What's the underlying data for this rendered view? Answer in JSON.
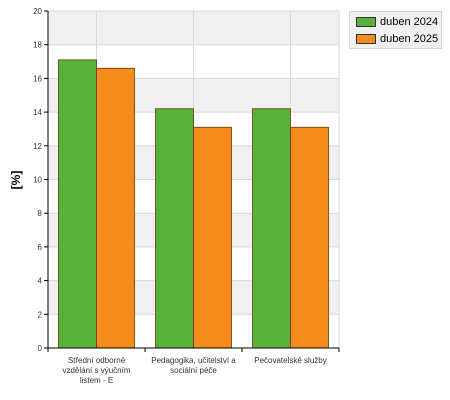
{
  "chart_data": {
    "type": "bar",
    "categories": [
      [
        "Střední odborné",
        "vzdělání s výučním",
        "listem - E"
      ],
      [
        "Pedagogika, učitelství a",
        "sociální péče"
      ],
      [
        "Pečovatelské služby"
      ]
    ],
    "series": [
      {
        "name": "duben 2024",
        "color": "#56b13d",
        "values": [
          17.1,
          14.2,
          14.2
        ]
      },
      {
        "name": "duben 2025",
        "color": "#f38c1c",
        "values": [
          16.6,
          13.1,
          13.1
        ]
      }
    ],
    "title": "",
    "xlabel": "",
    "ylabel": "[%]",
    "ylim": [
      0,
      20
    ],
    "yticks": [
      0,
      2,
      4,
      6,
      8,
      10,
      12,
      14,
      16,
      18,
      20
    ],
    "grid": true,
    "legend_position": "top-right"
  }
}
